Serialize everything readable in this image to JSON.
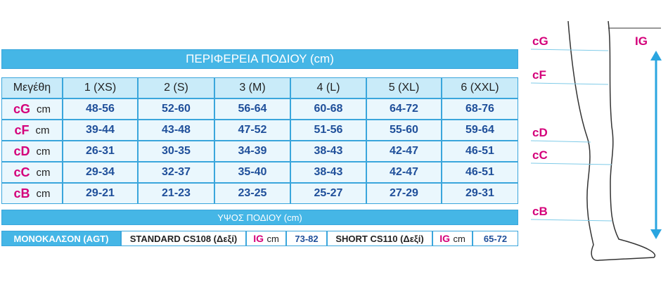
{
  "header": {
    "title": "ΠΕΡΙΦΕΡΕΙΑ ΠΟΔΙΟΥ (cm)"
  },
  "table": {
    "corner": "Μεγέθη",
    "sizes": [
      "1 (XS)",
      "2 (S)",
      "3 (M)",
      "4 (L)",
      "5 (XL)",
      "6 (XXL)"
    ],
    "rows": [
      {
        "label": "cG",
        "unit": "cm",
        "values": [
          "48-56",
          "52-60",
          "56-64",
          "60-68",
          "64-72",
          "68-76"
        ]
      },
      {
        "label": "cF",
        "unit": "cm",
        "values": [
          "39-44",
          "43-48",
          "47-52",
          "51-56",
          "55-60",
          "59-64"
        ]
      },
      {
        "label": "cD",
        "unit": "cm",
        "values": [
          "26-31",
          "30-35",
          "34-39",
          "38-43",
          "42-47",
          "46-51"
        ]
      },
      {
        "label": "cC",
        "unit": "cm",
        "values": [
          "29-34",
          "32-37",
          "35-40",
          "38-43",
          "42-47",
          "46-51"
        ]
      },
      {
        "label": "cB",
        "unit": "cm",
        "values": [
          "29-21",
          "21-23",
          "23-25",
          "25-27",
          "27-29",
          "29-31"
        ]
      }
    ]
  },
  "height": {
    "title": "ΥΨΟΣ ΠΟΔΙΟΥ (cm)",
    "product": "ΜΟΝΟΚΑΛΣΟΝ (AGT)",
    "items": [
      {
        "name": "STANDARD CS108 (Δεξί)",
        "label": "IG",
        "unit": "cm",
        "range": "73-82"
      },
      {
        "name": "SHORT CS110 (Δεξί)",
        "label": "IG",
        "unit": "cm",
        "range": "65-72"
      }
    ]
  },
  "diagram": {
    "labels": [
      "cG",
      "cF",
      "cD",
      "cC",
      "cB"
    ],
    "height_label": "IG"
  }
}
